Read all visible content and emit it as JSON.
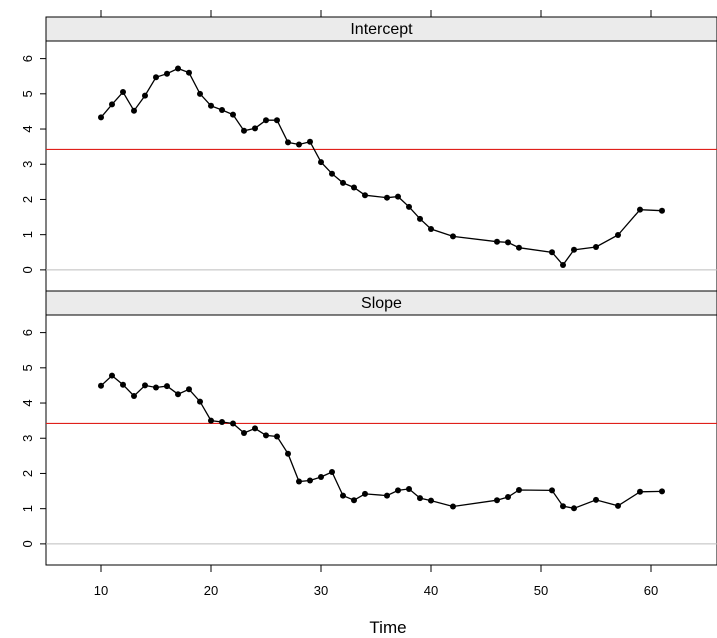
{
  "chart_data": {
    "type": "line",
    "xlabel": "Time",
    "xlim": [
      5,
      66
    ],
    "ylim": [
      -0.6,
      6.5
    ],
    "x_ticks": [
      10,
      20,
      30,
      40,
      50,
      60
    ],
    "y_ticks": [
      0,
      1,
      2,
      3,
      4,
      5,
      6
    ],
    "reference_line": 3.42,
    "zero_line": 0,
    "colors": {
      "series": "#000000",
      "reference": "#e0201b",
      "zero": "#bdbdbd",
      "strip": "#ebebeb"
    },
    "panels": [
      {
        "name": "Intercept",
        "x": [
          10,
          11,
          12,
          13,
          14,
          15,
          16,
          17,
          18,
          19,
          20,
          21,
          22,
          23,
          24,
          25,
          26,
          27,
          28,
          29,
          30,
          31,
          32,
          33,
          34,
          36,
          37,
          38,
          39,
          40,
          42,
          46,
          47,
          48,
          51,
          52,
          53,
          55,
          57,
          59,
          61
        ],
        "values": [
          4.33,
          4.7,
          5.05,
          4.52,
          4.95,
          5.47,
          5.57,
          5.72,
          5.6,
          5.0,
          4.66,
          4.54,
          4.41,
          3.95,
          4.02,
          4.25,
          4.25,
          3.62,
          3.56,
          3.64,
          3.06,
          2.73,
          2.47,
          2.34,
          2.12,
          2.05,
          2.08,
          1.79,
          1.45,
          1.16,
          0.95,
          0.8,
          0.78,
          0.63,
          0.5,
          0.14,
          0.57,
          0.65,
          0.99,
          1.71,
          1.68
        ]
      },
      {
        "name": "Slope",
        "x": [
          10,
          11,
          12,
          13,
          14,
          15,
          16,
          17,
          18,
          19,
          20,
          21,
          22,
          23,
          24,
          25,
          26,
          27,
          28,
          29,
          30,
          31,
          32,
          33,
          34,
          36,
          37,
          38,
          39,
          40,
          42,
          46,
          47,
          48,
          51,
          52,
          53,
          55,
          57,
          59,
          61
        ],
        "values": [
          4.49,
          4.78,
          4.52,
          4.2,
          4.5,
          4.44,
          4.48,
          4.25,
          4.39,
          4.04,
          3.5,
          3.46,
          3.42,
          3.15,
          3.28,
          3.08,
          3.05,
          2.56,
          1.77,
          1.8,
          1.9,
          2.04,
          1.37,
          1.24,
          1.42,
          1.37,
          1.52,
          1.56,
          1.3,
          1.23,
          1.06,
          1.24,
          1.33,
          1.53,
          1.52,
          1.07,
          1.01,
          1.25,
          1.08,
          1.48,
          1.49
        ]
      }
    ]
  }
}
